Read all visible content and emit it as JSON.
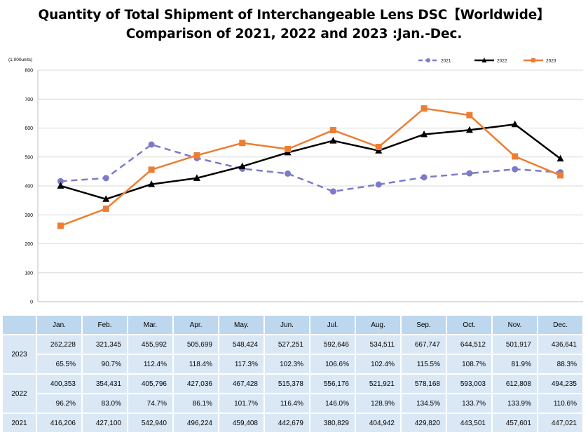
{
  "title_line1": "Quantity of Total Shipment of Interchangeable Lens DSC【Worldwide】",
  "title_line2": "Comparison of 2021, 2022 and 2023 :Jan.-Dec.",
  "chart_data": {
    "type": "line",
    "unit_label": "(1,000units)",
    "categories": [
      "Jan.",
      "Feb.",
      "Mar.",
      "Apr.",
      "May.",
      "Jun.",
      "Jul.",
      "Aug.",
      "Sep.",
      "Oct.",
      "Nov.",
      "Dec."
    ],
    "ylim": [
      0,
      800
    ],
    "yticks": [
      "0",
      "100",
      "200",
      "300",
      "400",
      "500",
      "600",
      "700",
      "800"
    ],
    "grid": true,
    "legend_position": "top-right",
    "series": [
      {
        "name": "2021",
        "color": "#7b7bc9",
        "style": "dashed",
        "marker": "circle",
        "values": [
          416.206,
          427.1,
          542.94,
          496.224,
          459.408,
          442.679,
          380.829,
          404.942,
          429.82,
          443.501,
          457.601,
          447.021
        ]
      },
      {
        "name": "2022",
        "color": "#000000",
        "style": "solid",
        "marker": "triangle",
        "values": [
          400.353,
          354.431,
          405.796,
          427.036,
          467.428,
          515.378,
          556.176,
          521.921,
          578.168,
          593.003,
          612.808,
          494.235
        ]
      },
      {
        "name": "2023",
        "color": "#ed7d31",
        "style": "solid",
        "marker": "square",
        "values": [
          262.228,
          321.345,
          455.992,
          505.699,
          548.424,
          527.251,
          592.646,
          534.511,
          667.747,
          644.512,
          501.917,
          436.641
        ]
      }
    ]
  },
  "table": {
    "months": [
      "Jan.",
      "Feb.",
      "Mar.",
      "Apr.",
      "May.",
      "Jun.",
      "Jul.",
      "Aug.",
      "Sep.",
      "Oct.",
      "Nov.",
      "Dec."
    ],
    "rows": [
      {
        "year": "2023",
        "values": [
          "262,228",
          "321,345",
          "455,992",
          "505,699",
          "548,424",
          "527,251",
          "592,646",
          "534,511",
          "667,747",
          "644,512",
          "501,917",
          "436,641"
        ],
        "ratios": [
          "65.5%",
          "90.7%",
          "112.4%",
          "118.4%",
          "117.3%",
          "102.3%",
          "106.6%",
          "102.4%",
          "115.5%",
          "108.7%",
          "81.9%",
          "88.3%"
        ]
      },
      {
        "year": "2022",
        "values": [
          "400,353",
          "354,431",
          "405,796",
          "427,036",
          "467,428",
          "515,378",
          "556,176",
          "521,921",
          "578,168",
          "593,003",
          "612,808",
          "494,235"
        ],
        "ratios": [
          "96.2%",
          "83.0%",
          "74.7%",
          "86.1%",
          "101.7%",
          "116.4%",
          "146.0%",
          "128.9%",
          "134.5%",
          "133.7%",
          "133.9%",
          "110.6%"
        ]
      },
      {
        "year": "2021",
        "values": [
          "416,206",
          "427,100",
          "542,940",
          "496,224",
          "459,408",
          "442,679",
          "380,829",
          "404,942",
          "429,820",
          "443,501",
          "457,601",
          "447,021"
        ]
      }
    ]
  }
}
